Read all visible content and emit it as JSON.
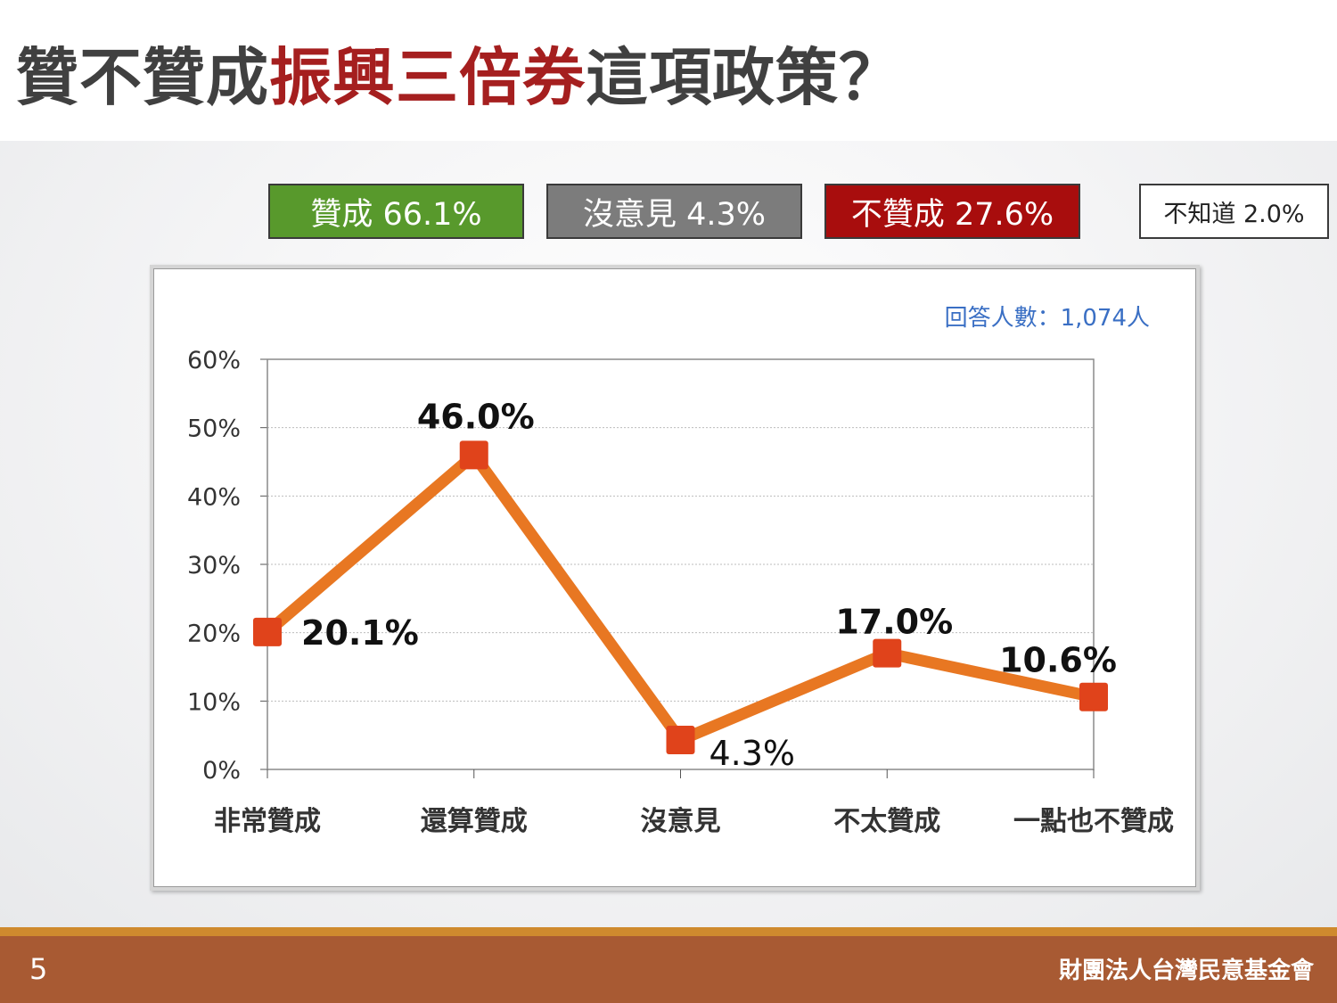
{
  "title": {
    "part1": "贊不贊成",
    "highlight": "振興三倍券",
    "part2": "這項政策？"
  },
  "legend": {
    "agree": "贊成 66.1%",
    "neutral": "沒意見 4.3%",
    "disagree": "不贊成 27.6%",
    "dont_know": "不知道 2.0%"
  },
  "sample_note": "回答人數：1,074人",
  "colors": {
    "agree": "#58992c",
    "neutral": "#7c7c7c",
    "disagree": "#a80d0d",
    "line": "#e87722",
    "marker": "#e0431b",
    "title_highlight": "#a51f1f",
    "footer": "#a85a33"
  },
  "chart_data": {
    "type": "line",
    "categories": [
      "非常贊成",
      "還算贊成",
      "沒意見",
      "不太贊成",
      "一點也不贊成"
    ],
    "values": [
      20.1,
      46.0,
      4.3,
      17.0,
      10.6
    ],
    "data_labels": [
      "20.1%",
      "46.0%",
      "4.3%",
      "17.0%",
      "10.6%"
    ],
    "y_ticks": [
      "0%",
      "10%",
      "20%",
      "30%",
      "40%",
      "50%",
      "60%"
    ],
    "ylim": [
      0,
      60
    ],
    "grid": true
  },
  "footer": {
    "page_number": "5",
    "organization": "財團法人台灣民意基金會"
  }
}
